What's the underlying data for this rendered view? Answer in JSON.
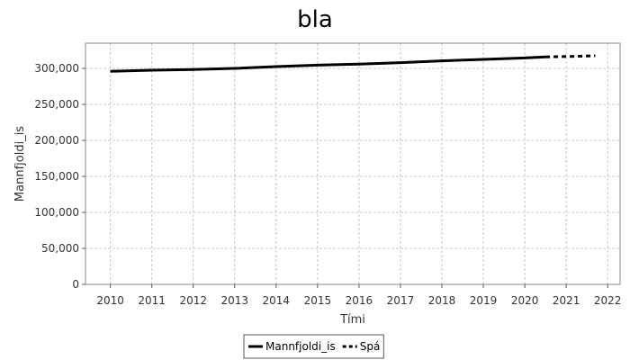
{
  "chart_data": {
    "type": "line",
    "title": "bla",
    "xlabel": "Tími",
    "ylabel": "Mannfjoldi_is",
    "xlim": [
      2009.4,
      2022.3
    ],
    "ylim": [
      0,
      335000
    ],
    "x_ticks": [
      2010,
      2011,
      2012,
      2013,
      2014,
      2015,
      2016,
      2017,
      2018,
      2019,
      2020,
      2021,
      2022
    ],
    "y_ticks": [
      0,
      50000,
      100000,
      150000,
      200000,
      250000,
      300000
    ],
    "y_tick_labels": [
      "0",
      "50,000",
      "100,000",
      "150,000",
      "200,000",
      "250,000",
      "300,000"
    ],
    "grid": true,
    "legend_position": "bottom",
    "series": [
      {
        "name": "Mannfjoldi_is",
        "style": "solid",
        "color": "#000000",
        "x": [
          2010.0,
          2011.0,
          2012.0,
          2013.0,
          2014.0,
          2015.0,
          2016.0,
          2017.0,
          2018.0,
          2019.0,
          2020.0,
          2020.5
        ],
        "y": [
          296000,
          297500,
          298500,
          300000,
          302500,
          304500,
          306000,
          308000,
          310500,
          312500,
          314500,
          316000
        ]
      },
      {
        "name": "Spá",
        "style": "dashed",
        "color": "#000000",
        "x": [
          2020.5,
          2021.0,
          2021.7
        ],
        "y": [
          316000,
          316500,
          317500
        ]
      }
    ]
  }
}
